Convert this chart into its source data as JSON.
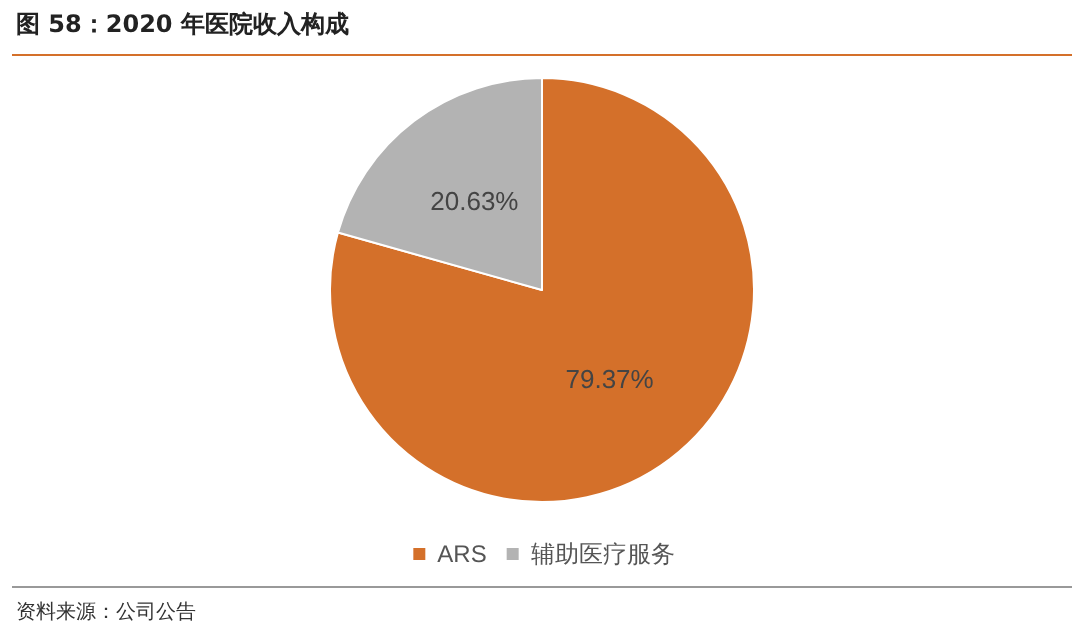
{
  "chart_data": {
    "type": "pie",
    "title": "图 58：2020 年医院收入构成",
    "categories": [
      "ARS",
      "辅助医疗服务"
    ],
    "values": [
      79.37,
      20.63
    ],
    "colors": [
      "#d4702a",
      "#b3b3b3"
    ],
    "value_labels": [
      "79.37%",
      "20.63%"
    ],
    "legend": "bottom",
    "annotations": [
      "资料来源：公司公告"
    ]
  }
}
